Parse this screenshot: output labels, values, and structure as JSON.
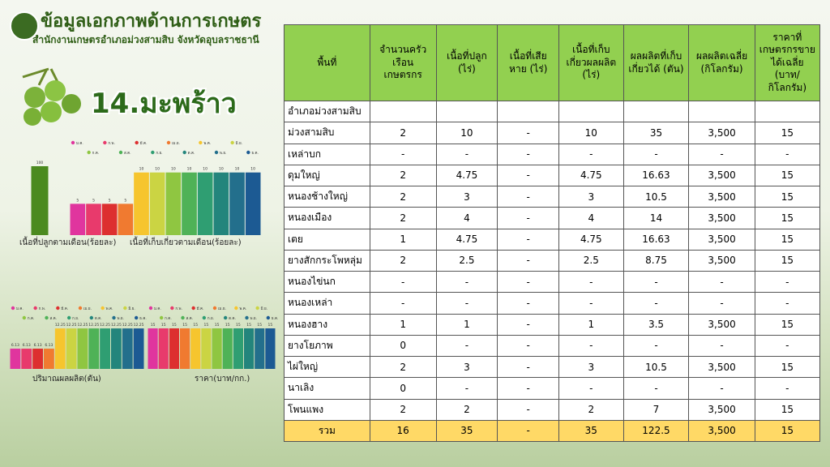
{
  "header": {
    "title": "ข้อมูลเอกภาพด้านการเกษตร",
    "subtitle": "สำนักงานเกษตรอำเภอม่วงสามสิบ จังหวัดอุบลราชธานี",
    "product": "14.มะพร้าว"
  },
  "months": [
    "ม.ค.",
    "ก.พ.",
    "มี.ค.",
    "เม.ย.",
    "พ.ค.",
    "มิ.ย.",
    "ก.ค.",
    "ส.ค.",
    "ก.ย.",
    "ต.ค.",
    "พ.ย.",
    "ธ.ค."
  ],
  "month_colors": [
    "#e0359e",
    "#e83a6c",
    "#dd2f2f",
    "#f07a30",
    "#f6c52e",
    "#cbd443",
    "#8fc641",
    "#4fb257",
    "#2f9e72",
    "#23857c",
    "#236f8c",
    "#1c5a93"
  ],
  "charts": [
    {
      "type": "bar",
      "label": "เนื้อที่ปลูกตามเดือน(ร้อยละ)",
      "values": [
        100
      ],
      "color": "#4b8a1f",
      "ylim": [
        0,
        100
      ]
    },
    {
      "type": "bar",
      "label": "เนื้อที่เก็บเกี่ยวตามเดือน(ร้อยละ)",
      "values": [
        5,
        5,
        5,
        5,
        10,
        10,
        10,
        10,
        10,
        10,
        10,
        10
      ],
      "ylim": [
        0,
        11
      ]
    },
    {
      "type": "bar",
      "label": "ปริมาณผลผลิต(ตัน)",
      "values": [
        6.13,
        6.13,
        6.13,
        6.13,
        12.25,
        12.25,
        12.25,
        12.25,
        12.25,
        12.25,
        12.25,
        12.25
      ],
      "ylim": [
        0,
        13.5
      ]
    },
    {
      "type": "bar",
      "label": "ราคา(บาท/กก.)",
      "values": [
        15,
        15,
        15,
        15,
        15,
        15,
        15,
        15,
        15,
        15,
        15,
        15
      ],
      "ylim": [
        0,
        16.5
      ]
    }
  ],
  "table": {
    "header": [
      "พื้นที่",
      "จำนวนครัวเรือนเกษตรกร",
      "เนื้อที่ปลูก (ไร่)",
      "เนื้อที่เสียหาย (ไร่)",
      "เนื้อที่เก็บเกี่ยวผลผลิต (ไร่)",
      "ผลผลิตที่เก็บเกี่ยวได้ (ตัน)",
      "ผลผลิตเฉลี่ย (กิโลกรัม)",
      "ราคาที่เกษตรกรขายได้เฉลี่ย (บาท/กิโลกรัม)"
    ],
    "rows": [
      [
        "อำเภอม่วงสามสิบ",
        "",
        "",
        "",
        "",
        "",
        "",
        ""
      ],
      [
        "ม่วงสามสิบ",
        "2",
        "10",
        "-",
        "10",
        "35",
        "3,500",
        "15"
      ],
      [
        "เหล่าบก",
        "-",
        "-",
        "-",
        "-",
        "-",
        "-",
        "-"
      ],
      [
        "ดุมใหญ่",
        "2",
        "4.75",
        "-",
        "4.75",
        "16.63",
        "3,500",
        "15"
      ],
      [
        "หนองช้างใหญ่",
        "2",
        "3",
        "-",
        "3",
        "10.5",
        "3,500",
        "15"
      ],
      [
        "หนองเมือง",
        "2",
        "4",
        "-",
        "4",
        "14",
        "3,500",
        "15"
      ],
      [
        "เตย",
        "1",
        "4.75",
        "-",
        "4.75",
        "16.63",
        "3,500",
        "15"
      ],
      [
        "ยางสักกระโพหลุ่ม",
        "2",
        "2.5",
        "-",
        "2.5",
        "8.75",
        "3,500",
        "15"
      ],
      [
        "หนองไข่นก",
        "-",
        "-",
        "-",
        "-",
        "-",
        "-",
        "-"
      ],
      [
        "หนองเหล่า",
        "-",
        "-",
        "-",
        "-",
        "-",
        "-",
        "-"
      ],
      [
        "หนองฮาง",
        "1",
        "1",
        "-",
        "1",
        "3.5",
        "3,500",
        "15"
      ],
      [
        "ยางโยภาพ",
        "0",
        "-",
        "-",
        "-",
        "-",
        "-",
        "-"
      ],
      [
        "ไผ่ใหญ่",
        "2",
        "3",
        "-",
        "3",
        "10.5",
        "3,500",
        "15"
      ],
      [
        "นาเลิง",
        "0",
        "-",
        "-",
        "-",
        "-",
        "-",
        "-"
      ],
      [
        "โพนแพง",
        "2",
        "2",
        "-",
        "2",
        "7",
        "3,500",
        "15"
      ]
    ],
    "total": [
      "รวม",
      "16",
      "35",
      "-",
      "35",
      "122.5",
      "3,500",
      "15"
    ]
  }
}
